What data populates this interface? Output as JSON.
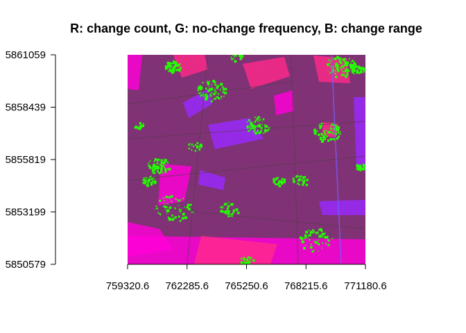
{
  "chart_data": {
    "type": "heatmap",
    "title": "R: change count, G: no-change frequency, B: change range",
    "xlabel": "",
    "ylabel": "",
    "x_ticks": [
      "759320.6",
      "762285.6",
      "765250.6",
      "768215.6",
      "771180.6"
    ],
    "y_ticks": [
      "5850579",
      "5853199",
      "5855819",
      "5858439",
      "5861059"
    ],
    "xlim": [
      759320.6,
      771180.6
    ],
    "ylim": [
      5850579,
      5861059
    ],
    "channels": [
      {
        "name": "R",
        "label": "change count"
      },
      {
        "name": "G",
        "label": "no-change frequency"
      },
      {
        "name": "B",
        "label": "change range"
      }
    ],
    "colors": {
      "base": "#7a2a6e",
      "magenta": "#ff00d8",
      "pink": "#ff2a8a",
      "purple": "#9a2aff",
      "green": "#22ff00",
      "blue_line": "#7a5cff",
      "dark": "#5a3a4e"
    },
    "grid": false,
    "legend": "none"
  }
}
